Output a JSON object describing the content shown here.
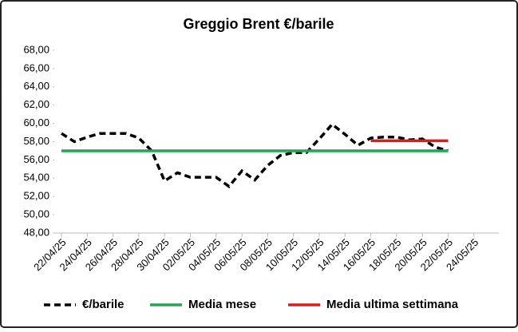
{
  "chart_data": {
    "type": "line",
    "title": "Greggio Brent €/barile",
    "categories": [
      "22/04/25",
      null,
      "24/04/25",
      null,
      "26/04/25",
      null,
      "28/04/25",
      null,
      "30/04/25",
      null,
      "02/05/25",
      null,
      "04/05/25",
      null,
      "06/05/25",
      null,
      "08/05/25",
      null,
      "10/05/25",
      null,
      "12/05/25",
      null,
      "14/05/25",
      null,
      "16/05/25",
      null,
      "18/05/25",
      null,
      "20/05/25",
      null,
      "22/05/25",
      null,
      "24/05/25"
    ],
    "series": [
      {
        "name": "€/barile",
        "color": "#000000",
        "dash": true,
        "values": [
          58.9,
          58.0,
          58.5,
          58.9,
          58.9,
          58.9,
          58.4,
          57.0,
          53.7,
          54.6,
          54.1,
          54.1,
          54.1,
          53.1,
          54.8,
          53.8,
          55.4,
          56.5,
          56.8,
          56.8,
          58.3,
          59.9,
          58.8,
          57.6,
          58.4,
          58.5,
          58.5,
          58.2,
          58.3,
          57.4,
          57.0,
          null,
          null
        ]
      },
      {
        "name": "Media mese",
        "color": "#1fa84f",
        "values": [
          57,
          57,
          57,
          57,
          57,
          57,
          57,
          57,
          57,
          57,
          57,
          57,
          57,
          57,
          57,
          57,
          57,
          57,
          57,
          57,
          57,
          57,
          57,
          57,
          57,
          57,
          57,
          57,
          57,
          57,
          57,
          null,
          null
        ]
      },
      {
        "name": "Media ultima settimana",
        "color": "#e01b1b",
        "values": [
          null,
          null,
          null,
          null,
          null,
          null,
          null,
          null,
          null,
          null,
          null,
          null,
          null,
          null,
          null,
          null,
          null,
          null,
          null,
          null,
          null,
          null,
          null,
          null,
          58.1,
          58.1,
          58.1,
          58.1,
          58.1,
          58.1,
          58.1,
          null,
          null
        ]
      }
    ],
    "ylim": [
      48,
      68
    ],
    "yticks": [
      {
        "value": 48,
        "label": "48,00"
      },
      {
        "value": 50,
        "label": "50,00"
      },
      {
        "value": 52,
        "label": "52,00"
      },
      {
        "value": 54,
        "label": "54,00"
      },
      {
        "value": 56,
        "label": "56,00"
      },
      {
        "value": 58,
        "label": "58,00"
      },
      {
        "value": 60,
        "label": "60,00"
      },
      {
        "value": 62,
        "label": "62,00"
      },
      {
        "value": 64,
        "label": "64,00"
      },
      {
        "value": 66,
        "label": "66,00"
      },
      {
        "value": 68,
        "label": "68,00"
      }
    ],
    "grid": false,
    "legend": "bottom"
  }
}
